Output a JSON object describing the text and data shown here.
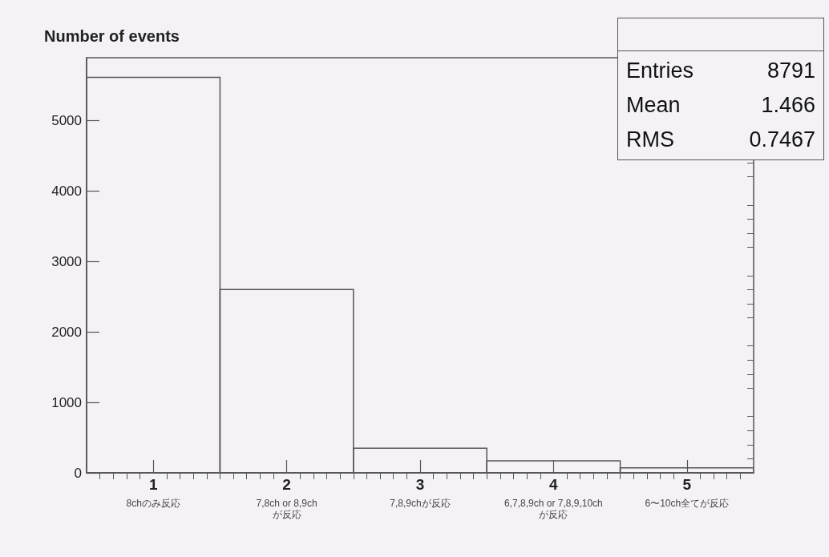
{
  "chart_data": {
    "type": "histogram",
    "title": "Number of events",
    "bins": [
      0.5,
      1.5,
      2.5,
      3.5,
      4.5,
      5.5
    ],
    "values": [
      5610,
      2600,
      350,
      170,
      70
    ],
    "color": "#555555",
    "xlim": [
      0.5,
      5.5
    ],
    "xticks": [
      {
        "value": 0.6,
        "label": null
      },
      {
        "value": 0.7,
        "label": null
      },
      {
        "value": 0.8,
        "label": null
      },
      {
        "value": 0.9,
        "label": null
      },
      1,
      {
        "value": 1.1,
        "label": null
      },
      {
        "value": 1.2,
        "label": null
      },
      {
        "value": 1.3,
        "label": null
      },
      {
        "value": 1.4,
        "label": null
      },
      {
        "value": 1.5,
        "label": null
      },
      {
        "value": 1.6,
        "label": null
      },
      {
        "value": 1.7,
        "label": null
      },
      {
        "value": 1.8,
        "label": null
      },
      {
        "value": 1.9,
        "label": null
      },
      2,
      {
        "value": 2.1,
        "label": null
      },
      {
        "value": 2.2,
        "label": null
      },
      {
        "value": 2.3,
        "label": null
      },
      {
        "value": 2.4,
        "label": null
      },
      {
        "value": 2.5,
        "label": null
      },
      {
        "value": 2.6,
        "label": null
      },
      {
        "value": 2.7,
        "label": null
      },
      {
        "value": 2.8,
        "label": null
      },
      {
        "value": 2.9,
        "label": null
      },
      3,
      {
        "value": 3.1,
        "label": null
      },
      {
        "value": 3.2,
        "label": null
      },
      {
        "value": 3.3,
        "label": null
      },
      {
        "value": 3.4,
        "label": null
      },
      {
        "value": 3.5,
        "label": null
      },
      {
        "value": 3.6,
        "label": null
      },
      {
        "value": 3.7,
        "label": null
      },
      {
        "value": 3.8,
        "label": null
      },
      {
        "value": 3.9,
        "label": null
      },
      4,
      {
        "value": 4.1,
        "label": null
      },
      {
        "value": 4.2,
        "label": null
      },
      {
        "value": 4.3,
        "label": null
      },
      {
        "value": 4.4,
        "label": null
      },
      {
        "value": 4.5,
        "label": null
      },
      {
        "value": 4.6,
        "label": null
      },
      {
        "value": 4.7,
        "label": null
      },
      {
        "value": 4.8,
        "label": null
      },
      {
        "value": 4.9,
        "label": null
      },
      5,
      {
        "value": 5.1,
        "label": null
      },
      {
        "value": 5.2,
        "label": null
      },
      {
        "value": 5.3,
        "label": null
      },
      {
        "value": 5.4,
        "label": null
      }
    ],
    "ylim": [
      0,
      5890
    ],
    "yticks": [
      0,
      {
        "value": 200,
        "label": null
      },
      {
        "value": 400,
        "label": null
      },
      {
        "value": 600,
        "label": null
      },
      {
        "value": 800,
        "label": null
      },
      1000,
      {
        "value": 1200,
        "label": null
      },
      {
        "value": 1400,
        "label": null
      },
      {
        "value": 1600,
        "label": null
      },
      {
        "value": 1800,
        "label": null
      },
      2000,
      {
        "value": 2200,
        "label": null
      },
      {
        "value": 2400,
        "label": null
      },
      {
        "value": 2600,
        "label": null
      },
      {
        "value": 2800,
        "label": null
      },
      3000,
      {
        "value": 3200,
        "label": null
      },
      {
        "value": 3400,
        "label": null
      },
      {
        "value": 3600,
        "label": null
      },
      {
        "value": 3800,
        "label": null
      },
      4000,
      {
        "value": 4200,
        "label": null
      },
      {
        "value": 4400,
        "label": null
      },
      {
        "value": 4600,
        "label": null
      },
      {
        "value": 4800,
        "label": null
      },
      5000,
      {
        "value": 5200,
        "label": null
      },
      {
        "value": 5400,
        "label": null
      },
      {
        "value": 5600,
        "label": null
      },
      {
        "value": 5800,
        "label": null
      }
    ],
    "annotations": [
      "Entries",
      "8791",
      "Mean",
      "1.466",
      "RMS",
      "0.7467",
      "8chのみ反応",
      "7,8ch or 8,9ch\nが反応",
      "7,8,9chが反応",
      "6,7,8,9ch or 7,8,9,10ch\nが反応",
      "6〜10ch全てが反応"
    ]
  }
}
